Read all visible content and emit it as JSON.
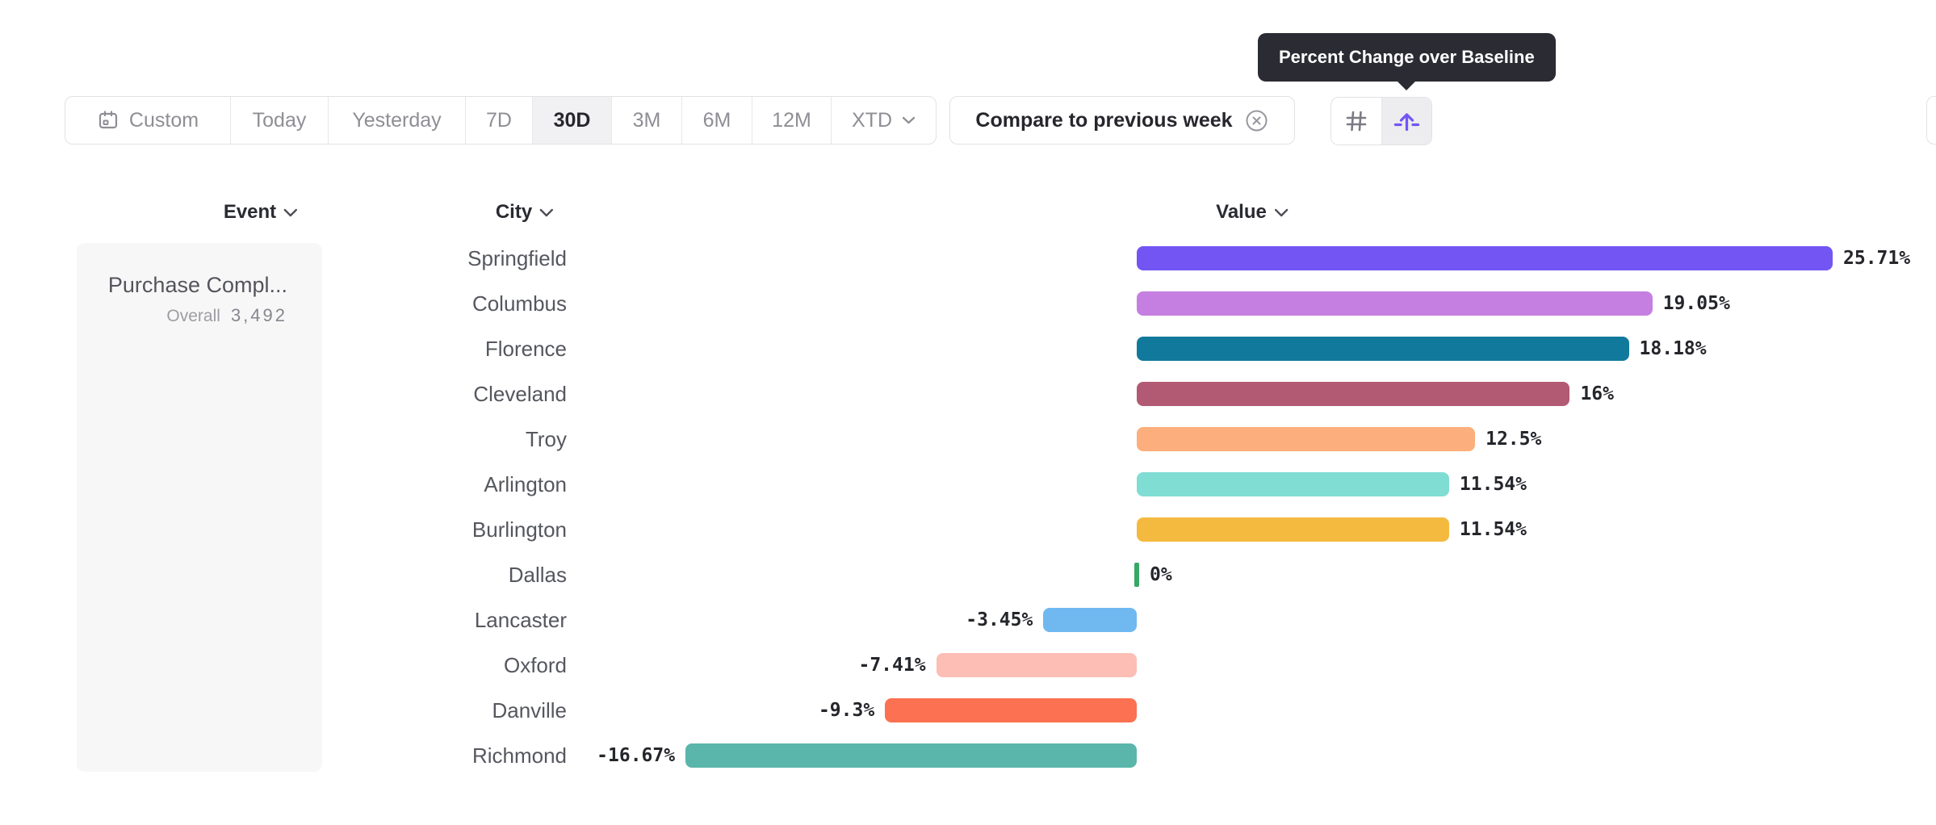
{
  "tooltip": {
    "text": "Percent Change over Baseline"
  },
  "toolbar": {
    "date_ranges": [
      "Custom",
      "Today",
      "Yesterday",
      "7D",
      "30D",
      "3M",
      "6M",
      "12M",
      "XTD"
    ],
    "selected_range": "30D",
    "compare_chip_label": "Compare to previous week",
    "view_toggles": [
      {
        "name": "hash-grid",
        "selected": false
      },
      {
        "name": "percent-change-over-baseline",
        "selected": true
      }
    ]
  },
  "columns": {
    "event": "Event",
    "city": "City",
    "value": "Value"
  },
  "event_card": {
    "name": "Purchase Compl...",
    "overall_label": "Overall",
    "overall_value": "3,492"
  },
  "chart_data": {
    "type": "bar",
    "orientation": "horizontal",
    "title": "Percent Change over Baseline",
    "event": "Purchase Compl...",
    "overall": 3492,
    "categories": [
      "Springfield",
      "Columbus",
      "Florence",
      "Cleveland",
      "Troy",
      "Arlington",
      "Burlington",
      "Dallas",
      "Lancaster",
      "Oxford",
      "Danville",
      "Richmond"
    ],
    "values": [
      25.71,
      19.05,
      18.18,
      16,
      12.5,
      11.54,
      11.54,
      0,
      -3.45,
      -7.41,
      -9.3,
      -16.67
    ],
    "value_labels": [
      "25.71%",
      "19.05%",
      "18.18%",
      "16%",
      "12.5%",
      "11.54%",
      "11.54%",
      "0%",
      "-3.45%",
      "-7.41%",
      "-9.3%",
      "-16.67%"
    ],
    "bar_colors": [
      "#7355F4",
      "#C47FE0",
      "#117A9C",
      "#B25973",
      "#FCAE7C",
      "#80DDD3",
      "#F4BA40",
      "#38A869",
      "#70B9F0",
      "#FCBEB5",
      "#FB7152",
      "#5AB5AA"
    ],
    "xlim": [
      -16.67,
      25.71
    ],
    "baseline": 0,
    "grid": false,
    "legend": false
  },
  "colors": {
    "accent_purple": "#7355F4",
    "tooltip_bg": "#2B2B33",
    "border": "#E1E2E5",
    "selected_bg": "#F1F1F3",
    "muted_text": "#8E8E95",
    "dark_text": "#26262C"
  }
}
